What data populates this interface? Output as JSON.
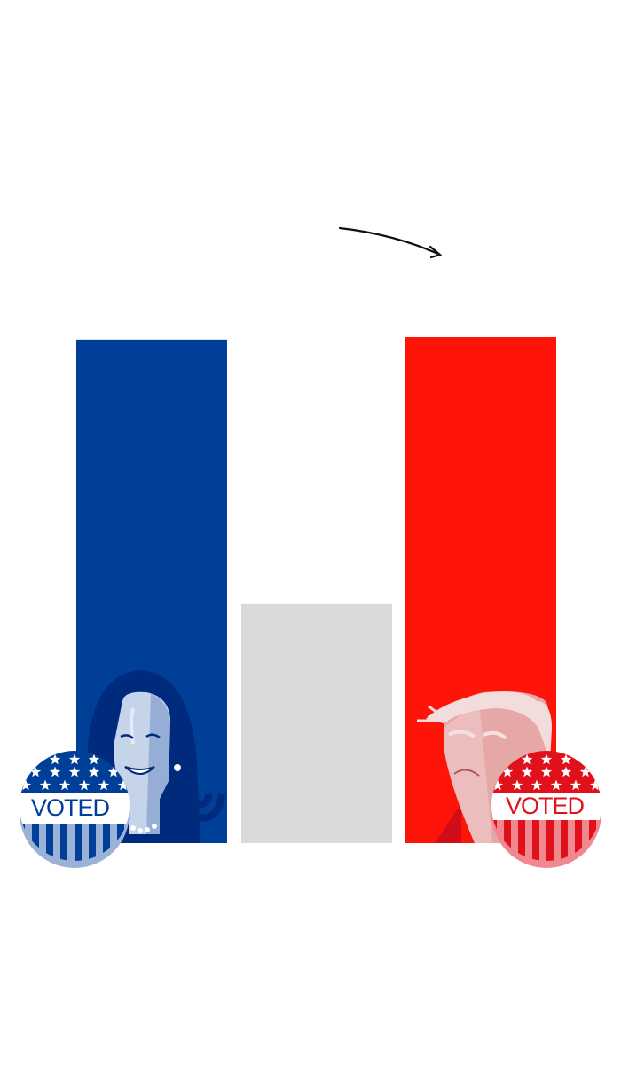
{
  "chart_data": {
    "type": "bar",
    "categories": [
      "blue",
      "gray",
      "red"
    ],
    "values": [
      99.5,
      47.4,
      100
    ],
    "ylim": [
      0,
      100
    ],
    "grid": false,
    "legend": "none",
    "colors": [
      "#003f98",
      "#d9dadc",
      "#ff140a"
    ]
  },
  "badges": {
    "blue": {
      "label": "VOTED",
      "color": "#003f98",
      "shadow": "#9bb2d8"
    },
    "red": {
      "label": "VOTED",
      "color": "#e1111c",
      "shadow": "#f08890"
    }
  },
  "icons": [
    "arrow-curved-icon",
    "blue-candidate-portrait",
    "red-candidate-portrait",
    "voted-badge-icon"
  ]
}
